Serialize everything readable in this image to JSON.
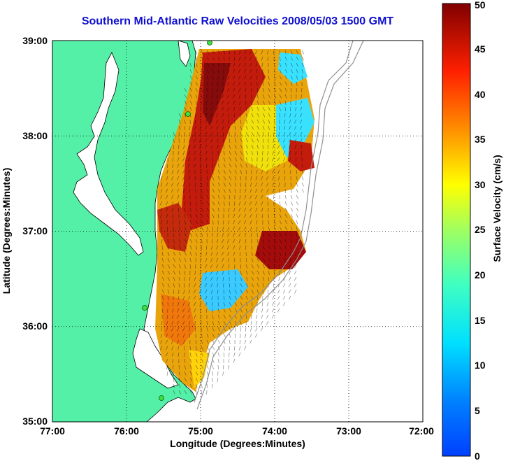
{
  "title": "Southern Mid-Atlantic Raw Velocities 2008/05/03 1500 GMT",
  "map": {
    "xlabel": "Longitude (Degrees:Minutes)",
    "ylabel": "Latitude (Degrees:Minutes)",
    "x_ticks": [
      "77:00",
      "76:00",
      "75:00",
      "74:00",
      "73:00",
      "72:00"
    ],
    "y_ticks": [
      "39:00",
      "38:00",
      "37:00",
      "36:00",
      "35:00"
    ],
    "lon_range": [
      -77,
      -72
    ],
    "lat_range": [
      35,
      39
    ],
    "grid": true,
    "land_color": "#55f0a8",
    "coast_color": "#000000"
  },
  "colorbar": {
    "label": "Surface Velocity (cm/s)",
    "ticks": [
      "0",
      "5",
      "10",
      "15",
      "20",
      "25",
      "30",
      "35",
      "40",
      "45",
      "50"
    ],
    "range": [
      0,
      50
    ],
    "colormap": "jet"
  }
}
